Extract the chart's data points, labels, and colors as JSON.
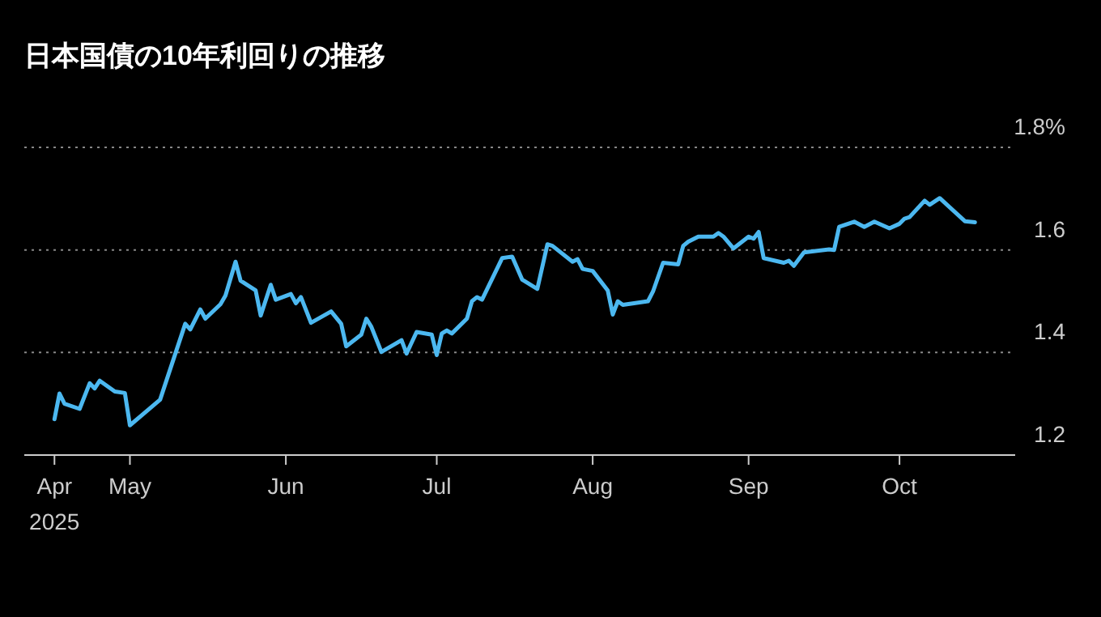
{
  "chart_data": {
    "type": "line",
    "title": "日本国債の10年利回りの推移",
    "x": [
      "2025-04-16",
      "2025-04-17",
      "2025-04-18",
      "2025-04-21",
      "2025-04-23",
      "2025-04-24",
      "2025-04-25",
      "2025-04-28",
      "2025-04-30",
      "2025-05-01",
      "2025-05-07",
      "2025-05-12",
      "2025-05-13",
      "2025-05-15",
      "2025-05-16",
      "2025-05-19",
      "2025-05-20",
      "2025-05-22",
      "2025-05-23",
      "2025-05-26",
      "2025-05-27",
      "2025-05-29",
      "2025-05-30",
      "2025-06-02",
      "2025-06-03",
      "2025-06-04",
      "2025-06-06",
      "2025-06-10",
      "2025-06-12",
      "2025-06-13",
      "2025-06-16",
      "2025-06-17",
      "2025-06-18",
      "2025-06-20",
      "2025-06-24",
      "2025-06-25",
      "2025-06-27",
      "2025-06-30",
      "2025-07-01",
      "2025-07-02",
      "2025-07-03",
      "2025-07-04",
      "2025-07-07",
      "2025-07-08",
      "2025-07-09",
      "2025-07-10",
      "2025-07-14",
      "2025-07-16",
      "2025-07-18",
      "2025-07-21",
      "2025-07-23",
      "2025-07-24",
      "2025-07-28",
      "2025-07-29",
      "2025-07-30",
      "2025-08-01",
      "2025-08-04",
      "2025-08-05",
      "2025-08-06",
      "2025-08-07",
      "2025-08-12",
      "2025-08-13",
      "2025-08-15",
      "2025-08-18",
      "2025-08-19",
      "2025-08-20",
      "2025-08-22",
      "2025-08-25",
      "2025-08-26",
      "2025-08-27",
      "2025-08-29",
      "2025-09-01",
      "2025-09-02",
      "2025-09-03",
      "2025-09-04",
      "2025-09-08",
      "2025-09-09",
      "2025-09-10",
      "2025-09-12",
      "2025-09-16",
      "2025-09-17",
      "2025-09-18",
      "2025-09-19",
      "2025-09-22",
      "2025-09-24",
      "2025-09-26",
      "2025-09-29",
      "2025-10-01",
      "2025-10-02",
      "2025-10-03",
      "2025-10-06",
      "2025-10-07",
      "2025-10-09",
      "2025-10-14",
      "2025-10-16"
    ],
    "series": [
      {
        "color": "#4cb8f0",
        "values": [
          1.27,
          1.32,
          1.3,
          1.29,
          1.34,
          1.33,
          1.345,
          1.324,
          1.321,
          1.258,
          1.308,
          1.456,
          1.445,
          1.484,
          1.466,
          1.494,
          1.511,
          1.577,
          1.54,
          1.521,
          1.472,
          1.532,
          1.503,
          1.514,
          1.496,
          1.508,
          1.458,
          1.48,
          1.456,
          1.412,
          1.435,
          1.466,
          1.45,
          1.401,
          1.424,
          1.398,
          1.44,
          1.435,
          1.395,
          1.437,
          1.443,
          1.437,
          1.466,
          1.5,
          1.508,
          1.503,
          1.584,
          1.587,
          1.542,
          1.524,
          1.611,
          1.608,
          1.577,
          1.582,
          1.563,
          1.559,
          1.521,
          1.474,
          1.5,
          1.493,
          1.5,
          1.519,
          1.575,
          1.572,
          1.608,
          1.616,
          1.626,
          1.626,
          1.633,
          1.626,
          1.603,
          1.626,
          1.622,
          1.635,
          1.584,
          1.575,
          1.579,
          1.569,
          1.595,
          1.6,
          1.601,
          1.6,
          1.645,
          1.655,
          1.645,
          1.655,
          1.642,
          1.651,
          1.661,
          1.664,
          1.696,
          1.688,
          1.701,
          1.656,
          1.654
        ]
      }
    ],
    "xlim": [
      "2025-04-10",
      "2025-10-24"
    ],
    "xticks": [
      {
        "value": "2025-04-16",
        "label": "Apr\n2025"
      },
      {
        "value": "2025-05-01",
        "label": "May"
      },
      {
        "value": "2025-06-01",
        "label": "Jun"
      },
      {
        "value": "2025-07-01",
        "label": "Jul"
      },
      {
        "value": "2025-08-01",
        "label": "Aug"
      },
      {
        "value": "2025-09-01",
        "label": "Sep"
      },
      {
        "value": "2025-10-01",
        "label": "Oct"
      }
    ],
    "ylim": [
      1.2,
      1.8
    ],
    "yticks": [
      1.2,
      1.4,
      1.6,
      {
        "value": 1.8,
        "label": "1.8%"
      }
    ],
    "grid": "y",
    "marker": "none",
    "line_style": "solid"
  }
}
